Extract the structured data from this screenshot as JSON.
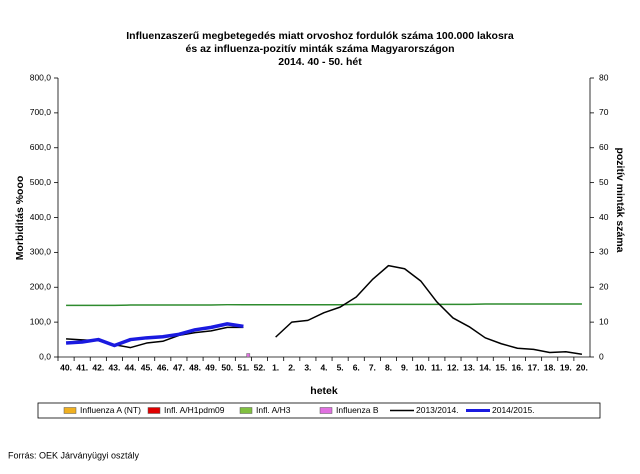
{
  "chart_data": {
    "type": "line",
    "title": [
      "Influenzaszerű megbetegedés miatt orvoshoz fordulók száma 100.000 lakosra",
      "és az influenza-pozitív minták száma Magyarországon",
      "2014. 40 - 50. hét"
    ],
    "y_label": "Morbiditás %ooo",
    "y2_label": "pozitív minták száma",
    "x_label": "hetek",
    "source": "Forrás: OEK Járványügyi osztály",
    "categories": [
      "40.",
      "41.",
      "42.",
      "43.",
      "44.",
      "45.",
      "46.",
      "47.",
      "48.",
      "49.",
      "50.",
      "51.",
      "52.",
      "1.",
      "2.",
      "3.",
      "4.",
      "5.",
      "6.",
      "7.",
      "8.",
      "9.",
      "10.",
      "11.",
      "12.",
      "13.",
      "14.",
      "15.",
      "16.",
      "17.",
      "18.",
      "19.",
      "20."
    ],
    "ylim": [
      0,
      800
    ],
    "yticks": [
      {
        "value": 0,
        "label": "0,0"
      },
      {
        "value": 100,
        "label": "100,0"
      },
      {
        "value": 200,
        "label": "200,0"
      },
      {
        "value": 300,
        "label": "300,0"
      },
      {
        "value": 400,
        "label": "400,0"
      },
      {
        "value": 500,
        "label": "500,0"
      },
      {
        "value": 600,
        "label": "600,0"
      },
      {
        "value": 700,
        "label": "700,0"
      },
      {
        "value": 800,
        "label": "800,0"
      }
    ],
    "y2lim": [
      0,
      80
    ],
    "y2ticks": [
      0,
      10,
      20,
      30,
      40,
      50,
      60,
      70,
      80
    ],
    "threshold": {
      "color": "#2e8b2e",
      "values": [
        148,
        148,
        148,
        148,
        149,
        149,
        149,
        149,
        149,
        149,
        150,
        150,
        150,
        150,
        150,
        150,
        150,
        150,
        151,
        151,
        151,
        151,
        151,
        151,
        151,
        151,
        152,
        152,
        152,
        152,
        152,
        152,
        152
      ]
    },
    "series": [
      {
        "name": "Influenza A (NT)",
        "type": "bar",
        "axis": "y2",
        "color": "#f0b020",
        "values": [
          null,
          null,
          null,
          null,
          null,
          null,
          null,
          null,
          null,
          null,
          null,
          null,
          null,
          null,
          null,
          null,
          null,
          null,
          null,
          null,
          null,
          null,
          null,
          null,
          null,
          null,
          null,
          null,
          null,
          null,
          null,
          null,
          null
        ]
      },
      {
        "name": "Infl. A/H1pdm09",
        "type": "bar",
        "axis": "y2",
        "color": "#e00000",
        "values": [
          null,
          null,
          null,
          null,
          null,
          null,
          null,
          null,
          null,
          null,
          null,
          null,
          null,
          null,
          null,
          null,
          null,
          null,
          null,
          null,
          null,
          null,
          null,
          null,
          null,
          null,
          null,
          null,
          null,
          null,
          null,
          null,
          null
        ]
      },
      {
        "name": "Infl. A/H3",
        "type": "bar",
        "axis": "y2",
        "color": "#80c040",
        "values": [
          null,
          null,
          null,
          null,
          null,
          null,
          null,
          null,
          null,
          null,
          null,
          null,
          null,
          null,
          null,
          null,
          null,
          null,
          null,
          null,
          null,
          null,
          null,
          null,
          null,
          null,
          null,
          null,
          null,
          null,
          null,
          null,
          null
        ]
      },
      {
        "name": "Influenza B",
        "type": "bar",
        "axis": "y2",
        "color": "#e070e0",
        "values": [
          null,
          null,
          null,
          null,
          null,
          null,
          null,
          null,
          null,
          null,
          null,
          1,
          null,
          null,
          null,
          null,
          null,
          null,
          null,
          null,
          null,
          null,
          null,
          null,
          null,
          null,
          null,
          null,
          null,
          null,
          null,
          null,
          null
        ]
      },
      {
        "name": "2013/2014.",
        "type": "line",
        "color": "#000000",
        "width": 1.5,
        "values": [
          52,
          49,
          47,
          35,
          27,
          40,
          45,
          62,
          70,
          75,
          85,
          85,
          null,
          57,
          100,
          105,
          127,
          143,
          172,
          222,
          262,
          253,
          218,
          158,
          112,
          87,
          55,
          38,
          25,
          22,
          13,
          15,
          8
        ]
      },
      {
        "name": "2014/2015.",
        "type": "line",
        "color": "#1a1ae0",
        "width": 3.5,
        "values": [
          40,
          43,
          50,
          33,
          50,
          55,
          58,
          65,
          78,
          85,
          95,
          88,
          null,
          null,
          null,
          null,
          null,
          null,
          null,
          null,
          null,
          null,
          null,
          null,
          null,
          null,
          null,
          null,
          null,
          null,
          null,
          null,
          null
        ]
      }
    ]
  }
}
